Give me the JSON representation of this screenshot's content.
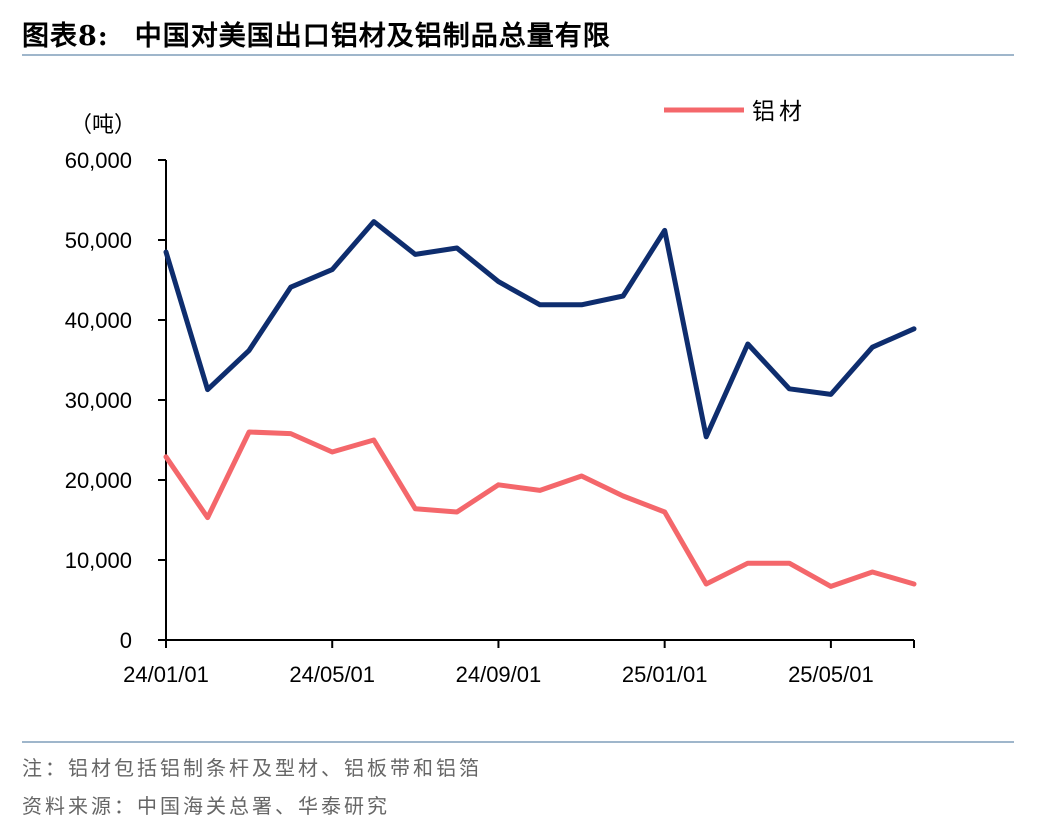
{
  "header": {
    "label": "图表8:",
    "title": "中国对美国出口铝材及铝制品总量有限"
  },
  "footer": {
    "note": "注：铝材包括铝制条杆及型材、铝板带和铝箔",
    "source": "资料来源：中国海关总署、华泰研究"
  },
  "chart_data": {
    "type": "line",
    "unit": "（吨）",
    "ylim": [
      0,
      60000
    ],
    "y_ticks": [
      0,
      10000,
      20000,
      30000,
      40000,
      50000,
      60000
    ],
    "y_tick_labels": [
      "0",
      "10,000",
      "20,000",
      "30,000",
      "40,000",
      "50,000",
      "60,000"
    ],
    "x_tick_labels": [
      "24/01/01",
      "24/05/01",
      "24/09/01",
      "25/01/01",
      "25/05/01"
    ],
    "x": [
      "2024-01",
      "2024-02",
      "2024-03",
      "2024-04",
      "2024-05",
      "2024-06",
      "2024-07",
      "2024-08",
      "2024-09",
      "2024-10",
      "2024-11",
      "2024-12",
      "2025-01",
      "2025-02",
      "2025-03",
      "2025-04",
      "2025-05",
      "2025-06",
      "2025-07"
    ],
    "legend_position": "top",
    "grid": false,
    "series": [
      {
        "name": "",
        "color": "#0e2d6e",
        "values": [
          48500,
          31300,
          36200,
          44100,
          46300,
          52300,
          48200,
          49000,
          44800,
          41900,
          41900,
          43000,
          51200,
          25400,
          37000,
          31400,
          30700,
          36600,
          38900
        ]
      },
      {
        "name": "铝材",
        "color": "#f4676b",
        "values": [
          22900,
          15300,
          26000,
          25800,
          23500,
          25000,
          16400,
          16000,
          19400,
          18700,
          20500,
          18000,
          16000,
          7000,
          9600,
          9600,
          6700,
          8500,
          7000
        ]
      }
    ]
  }
}
